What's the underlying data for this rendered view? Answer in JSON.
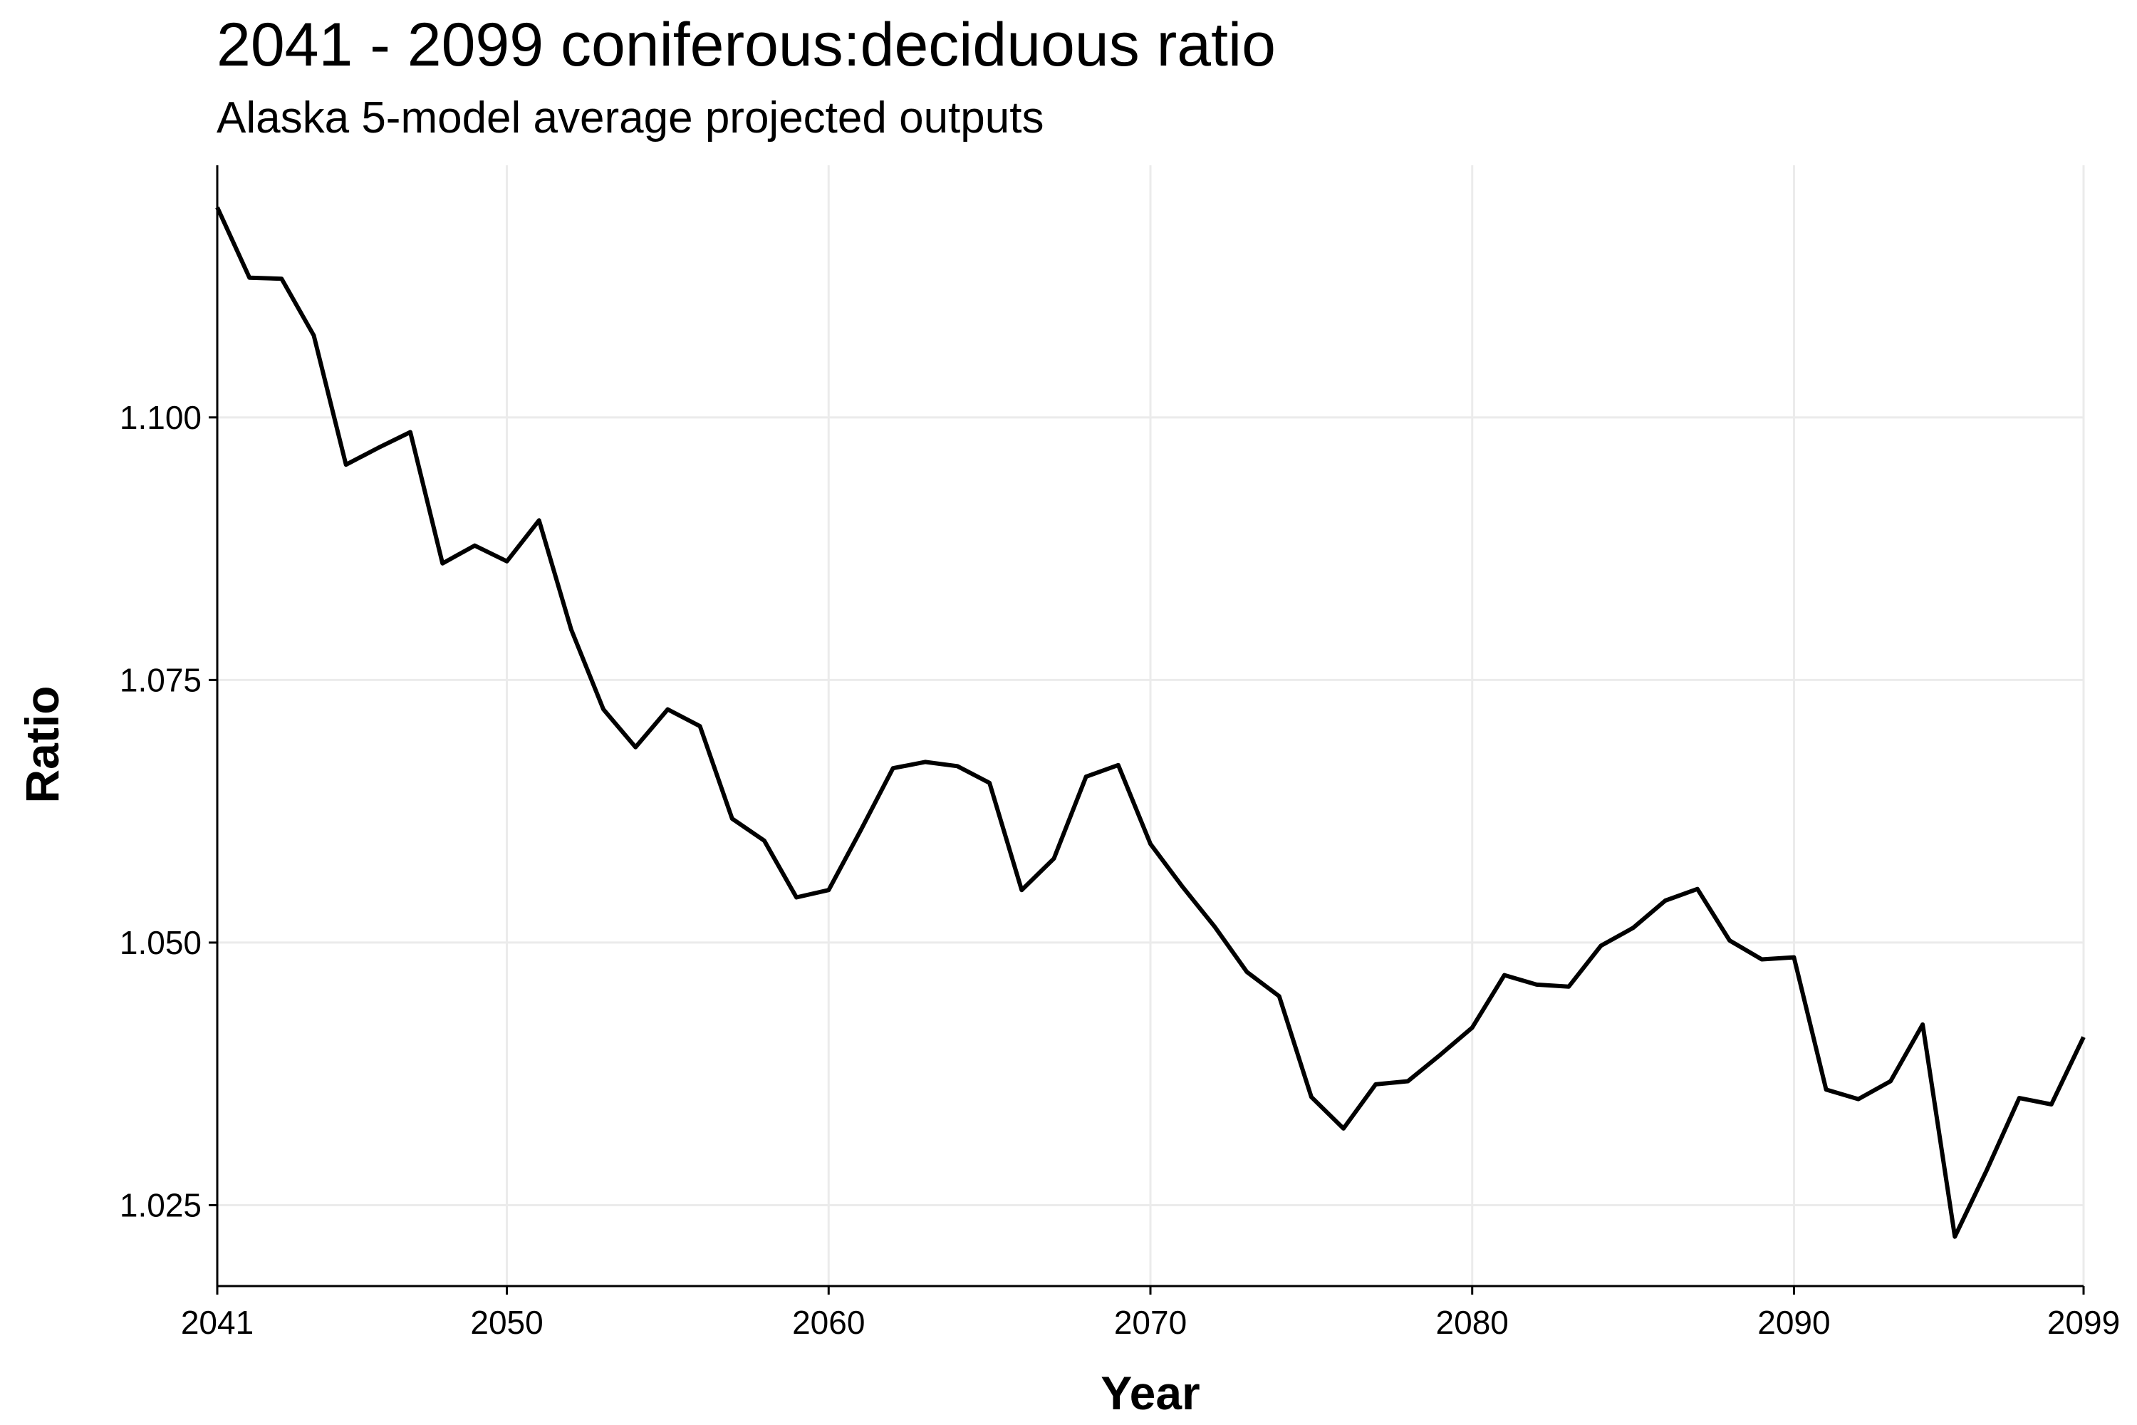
{
  "chart_data": {
    "type": "line",
    "title": "2041 - 2099 coniferous:deciduous ratio",
    "subtitle": "Alaska 5-model average projected outputs",
    "xlabel": "Year",
    "ylabel": "Ratio",
    "xlim": [
      2041,
      2099
    ],
    "ylim": [
      1.0173,
      1.124
    ],
    "x_ticks": [
      2041,
      2050,
      2060,
      2070,
      2080,
      2090,
      2099
    ],
    "y_ticks": [
      1.025,
      1.05,
      1.075,
      1.1
    ],
    "y_tick_labels": [
      "1.025",
      "1.050",
      "1.075",
      "1.100"
    ],
    "grid": true,
    "line_color": "#000000",
    "grid_color": "#ebebeb",
    "series": [
      {
        "x": [
          2041,
          2042,
          2043,
          2044,
          2045,
          2046,
          2047,
          2048,
          2049,
          2050,
          2051,
          2052,
          2053,
          2054,
          2055,
          2056,
          2057,
          2058,
          2059,
          2060,
          2061,
          2062,
          2063,
          2064,
          2065,
          2066,
          2067,
          2068,
          2069,
          2070,
          2071,
          2072,
          2073,
          2074,
          2075,
          2076,
          2077,
          2078,
          2079,
          2080,
          2081,
          2082,
          2083,
          2084,
          2085,
          2086,
          2087,
          2088,
          2089,
          2090,
          2091,
          2092,
          2093,
          2094,
          2095,
          2096,
          2097,
          2098,
          2099
        ],
        "values": [
          1.12,
          1.1133,
          1.1132,
          1.1078,
          1.0955,
          1.0971,
          1.0986,
          1.0861,
          1.0878,
          1.0863,
          1.0902,
          1.0798,
          1.0722,
          1.0686,
          1.0722,
          1.0706,
          1.0618,
          1.0597,
          1.0543,
          1.055,
          1.0607,
          1.0666,
          1.0672,
          1.0668,
          1.0652,
          1.055,
          1.058,
          1.0658,
          1.0669,
          1.0594,
          1.0553,
          1.0515,
          1.0472,
          1.0449,
          1.0353,
          1.0323,
          1.0365,
          1.0368,
          1.0393,
          1.0419,
          1.0469,
          1.046,
          1.0458,
          1.0497,
          1.0514,
          1.054,
          1.0551,
          1.0502,
          1.0484,
          1.0486,
          1.036,
          1.0351,
          1.0368,
          1.0422,
          1.022,
          1.0284,
          1.0352,
          1.0346,
          1.041
        ]
      }
    ]
  }
}
